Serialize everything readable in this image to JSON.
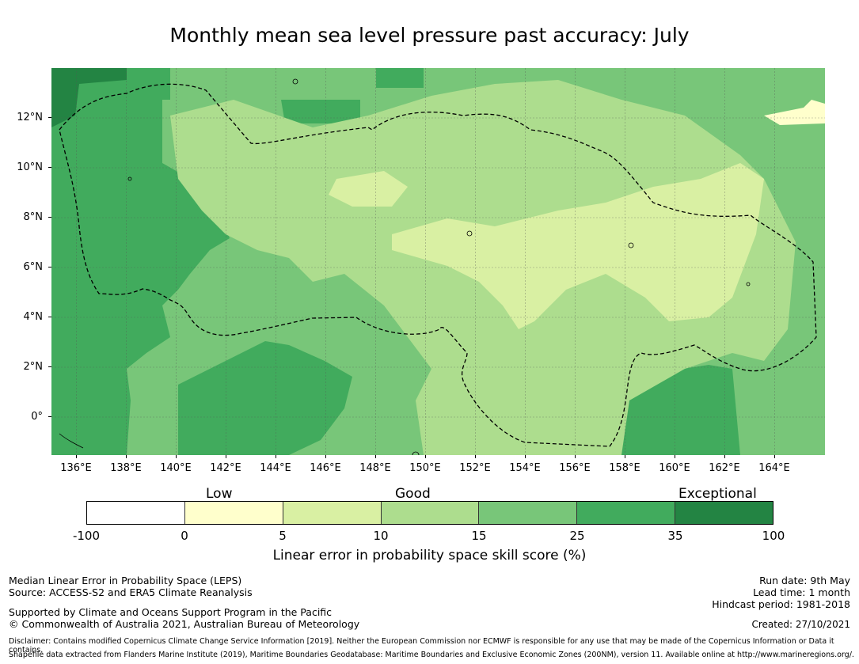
{
  "title": "Monthly mean sea level pressure past accuracy: July",
  "map": {
    "lat_labels": [
      "12°N",
      "10°N",
      "8°N",
      "6°N",
      "4°N",
      "2°N",
      "0°"
    ],
    "lon_labels": [
      "136°E",
      "138°E",
      "140°E",
      "142°E",
      "144°E",
      "146°E",
      "148°E",
      "150°E",
      "152°E",
      "154°E",
      "156°E",
      "158°E",
      "160°E",
      "162°E",
      "164°E"
    ],
    "colors": {
      "low": "#ffffcc",
      "lowmid": "#d9f0a3",
      "mid": "#addd8e",
      "good": "#78c679",
      "high": "#41ab5d",
      "exceptional": "#238443",
      "none": "#ffffff"
    }
  },
  "colorbar": {
    "categories": [
      "Low",
      "Good",
      "Exceptional"
    ],
    "tick_labels": [
      "-100",
      "0",
      "5",
      "10",
      "15",
      "25",
      "35",
      "100"
    ],
    "segment_colors": [
      "#ffffff",
      "#ffffcc",
      "#d9f0a3",
      "#addd8e",
      "#78c679",
      "#41ab5d",
      "#238443"
    ],
    "title": "Linear error in probability space skill score (%)"
  },
  "footer": {
    "left_line1": "Median Linear Error in Probability Space (LEPS)",
    "left_line2": "Source: ACCESS-S2 and ERA5 Climate Reanalysis",
    "left_line3": "Supported by Climate and Oceans Support Program in the Pacific",
    "left_line4": "© Commonwealth of Australia 2021, Australian Bureau of Meteorology",
    "right_line1": "Run date: 9th May",
    "right_line2": "Lead time: 1 month",
    "right_line3": "Hindcast period: 1981-2018",
    "created": "Created: 27/10/2021",
    "disclaimer1": "Disclaimer: Contains modified Copernicus Climate Change Service Information [2019]. Neither the European Commission nor ECMWF is responsible for any use that may be made of the Copernicus Information or Data it contains.",
    "disclaimer2": "Shapefile data extracted from Flanders Marine Institute (2019), Maritime Boundaries Geodatabase: Maritime Boundaries and Exclusive Economic Zones (200NM), version 11. Available online at http://www.marineregions.org/."
  }
}
